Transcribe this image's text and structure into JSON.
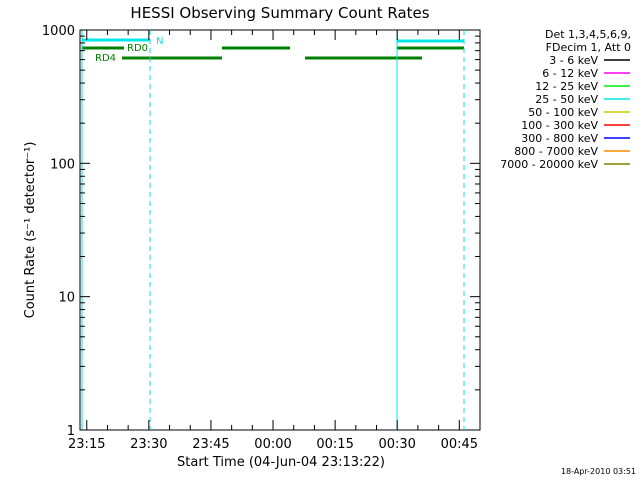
{
  "chart_data": {
    "type": "line",
    "title": "HESSI Observing Summary Count Rates",
    "xlabel": "Start Time (04-Jun-04 23:13:22)",
    "ylabel": "Count Rate (s⁻¹ detector⁻¹)",
    "y_scale": "log",
    "ylim": [
      1,
      1000
    ],
    "xlim": [
      "23:13:22",
      "00:50:00"
    ],
    "x_ticks": [
      "23:15",
      "23:30",
      "23:45",
      "00:00",
      "00:15",
      "00:30",
      "00:45"
    ],
    "y_ticks": [
      "1",
      "10",
      "100",
      "1000"
    ],
    "grid": false,
    "legend_header": [
      "Det 1,3,4,5,6,9,",
      "FDecim 1, Att 0"
    ],
    "legend_position": "right",
    "x": [
      "23:14",
      "23:17",
      "23:20",
      "23:23",
      "23:26",
      "23:29",
      "23:32",
      "23:35",
      "23:38",
      "23:41",
      "23:44",
      "23:47",
      "23:50",
      "23:53",
      "23:56",
      "23:59",
      "00:02",
      "00:05",
      "00:08",
      "00:11",
      "00:14",
      "00:17",
      "00:20",
      "00:23",
      "00:26",
      "00:29",
      "00:32",
      "00:35",
      "00:38",
      "00:41",
      "00:44",
      "00:47"
    ],
    "series": [
      {
        "name": "3 - 6 keV",
        "color": "#000000",
        "values": [
          null,
          null,
          null,
          null,
          null,
          null,
          null,
          null,
          null,
          null,
          null,
          null,
          null,
          null,
          null,
          null,
          null,
          null,
          null,
          null,
          null,
          null,
          null,
          null,
          null,
          null,
          null,
          null,
          null,
          null,
          null,
          null
        ]
      },
      {
        "name": "6 - 12 keV",
        "color": "#ff00ff",
        "values": [
          null,
          null,
          null,
          null,
          null,
          null,
          null,
          null,
          null,
          null,
          null,
          null,
          null,
          null,
          null,
          null,
          null,
          null,
          null,
          null,
          null,
          null,
          null,
          null,
          null,
          null,
          null,
          null,
          null,
          null,
          null,
          null
        ]
      },
      {
        "name": "12 - 25 keV",
        "color": "#00ee00",
        "values": [
          null,
          null,
          null,
          null,
          null,
          null,
          null,
          null,
          null,
          null,
          null,
          null,
          null,
          null,
          null,
          null,
          null,
          null,
          null,
          null,
          null,
          null,
          null,
          null,
          null,
          null,
          null,
          null,
          null,
          null,
          null,
          null
        ]
      },
      {
        "name": "25 - 50 keV",
        "color": "#00e5e5",
        "values": [
          null,
          null,
          null,
          null,
          null,
          null,
          null,
          null,
          null,
          null,
          null,
          null,
          null,
          null,
          null,
          null,
          null,
          null,
          null,
          null,
          null,
          null,
          null,
          null,
          null,
          null,
          null,
          null,
          null,
          null,
          null,
          null
        ]
      },
      {
        "name": "50 - 100 keV",
        "color": "#d4c800",
        "values": [
          null,
          null,
          null,
          null,
          null,
          null,
          null,
          null,
          null,
          null,
          null,
          null,
          null,
          null,
          null,
          null,
          null,
          null,
          null,
          null,
          null,
          null,
          null,
          null,
          null,
          null,
          null,
          null,
          null,
          null,
          null,
          null
        ]
      },
      {
        "name": "100 - 300 keV",
        "color": "#ff0000",
        "values": [
          null,
          null,
          null,
          null,
          null,
          null,
          null,
          null,
          null,
          null,
          null,
          null,
          null,
          null,
          null,
          null,
          null,
          null,
          null,
          null,
          null,
          null,
          null,
          null,
          null,
          null,
          null,
          null,
          null,
          null,
          null,
          null
        ]
      },
      {
        "name": "300 - 800 keV",
        "color": "#0000ff",
        "values": [
          null,
          null,
          null,
          null,
          null,
          null,
          null,
          null,
          null,
          null,
          null,
          null,
          null,
          null,
          null,
          null,
          null,
          null,
          null,
          null,
          null,
          null,
          null,
          null,
          null,
          null,
          null,
          null,
          null,
          null,
          null,
          null
        ]
      },
      {
        "name": "800 - 7000 keV",
        "color": "#ff8c00",
        "values": [
          null,
          null,
          null,
          null,
          null,
          null,
          null,
          null,
          null,
          null,
          null,
          null,
          null,
          null,
          null,
          null,
          null,
          null,
          null,
          null,
          null,
          null,
          null,
          null,
          null,
          null,
          null,
          null,
          null,
          null,
          null,
          null
        ]
      },
      {
        "name": "7000 - 20000 keV",
        "color": "#808000",
        "values": [
          null,
          null,
          null,
          null,
          null,
          null,
          null,
          null,
          null,
          null,
          null,
          null,
          null,
          null,
          null,
          null,
          null,
          null,
          null,
          null,
          null,
          null,
          null,
          null,
          null,
          null,
          null,
          null,
          null,
          null,
          null,
          null
        ]
      }
    ],
    "annotations": [
      {
        "text": "N",
        "color": "#00e5e5"
      },
      {
        "text": "RD0",
        "color": "#008000"
      },
      {
        "text": "RD4",
        "color": "#008000"
      }
    ]
  },
  "timestamp": "18-Apr-2010 03:51"
}
